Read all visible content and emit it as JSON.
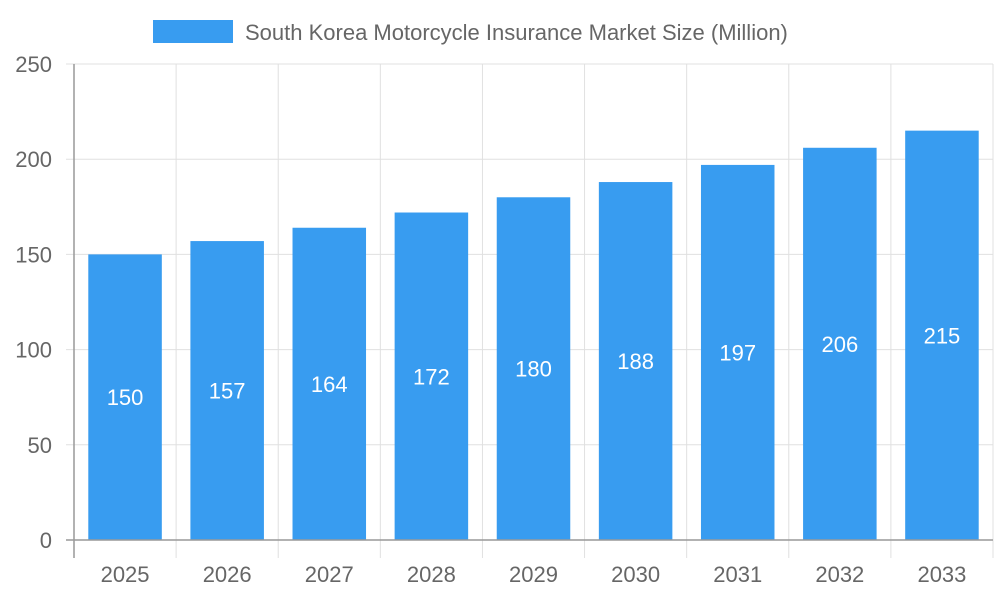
{
  "chart_data": {
    "type": "bar",
    "title": "",
    "legend": {
      "position": "top",
      "entries": [
        "South Korea Motorcycle Insurance Market Size (Million)"
      ]
    },
    "categories": [
      "2025",
      "2026",
      "2027",
      "2028",
      "2029",
      "2030",
      "2031",
      "2032",
      "2033"
    ],
    "series": [
      {
        "name": "South Korea Motorcycle Insurance Market Size (Million)",
        "values": [
          150,
          157,
          164,
          172,
          180,
          188,
          197,
          206,
          215
        ],
        "color": "#389CF0"
      }
    ],
    "ylim": [
      0,
      250
    ],
    "yticks": [
      0,
      50,
      100,
      150,
      200,
      250
    ],
    "grid": true,
    "data_labels": true
  }
}
